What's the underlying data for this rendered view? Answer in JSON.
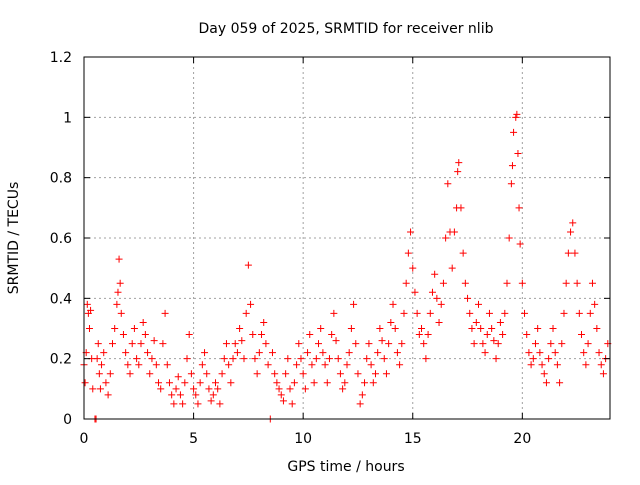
{
  "chart_data": {
    "type": "scatter",
    "title": "Day 059 of 2025, SRMTID for receiver nlib",
    "xlabel": "GPS time / hours",
    "ylabel": "SRMTID / TECUs",
    "xlim": [
      0,
      24
    ],
    "ylim": [
      0,
      1.2
    ],
    "x_ticks": [
      0,
      5,
      10,
      15,
      20
    ],
    "x_tick_labels": [
      "0",
      "5",
      "10",
      "15",
      "20"
    ],
    "y_ticks": [
      0,
      0.2,
      0.4,
      0.6,
      0.8,
      1.0,
      1.2
    ],
    "y_tick_labels": [
      "0",
      "0.2",
      "0.4",
      "0.6",
      "0.8",
      "1",
      "1.2"
    ],
    "grid": true,
    "marker": "plus",
    "colors": {
      "points": "#ff0000",
      "grid": "#a0a0a0",
      "axes": "#000000"
    },
    "series": [
      {
        "name": "SRMTID",
        "points": [
          [
            0.0,
            0.18
          ],
          [
            0.05,
            0.12
          ],
          [
            0.1,
            0.22
          ],
          [
            0.15,
            0.38
          ],
          [
            0.2,
            0.35
          ],
          [
            0.25,
            0.3
          ],
          [
            0.3,
            0.36
          ],
          [
            0.35,
            0.2
          ],
          [
            0.4,
            0.1
          ],
          [
            0.5,
            0.0
          ],
          [
            0.55,
            0.0
          ],
          [
            0.6,
            0.2
          ],
          [
            0.65,
            0.25
          ],
          [
            0.7,
            0.15
          ],
          [
            0.75,
            0.1
          ],
          [
            0.8,
            0.18
          ],
          [
            0.9,
            0.22
          ],
          [
            1.0,
            0.12
          ],
          [
            1.1,
            0.08
          ],
          [
            1.2,
            0.15
          ],
          [
            1.3,
            0.25
          ],
          [
            1.4,
            0.3
          ],
          [
            1.5,
            0.38
          ],
          [
            1.55,
            0.42
          ],
          [
            1.6,
            0.53
          ],
          [
            1.65,
            0.45
          ],
          [
            1.7,
            0.35
          ],
          [
            1.8,
            0.28
          ],
          [
            1.9,
            0.22
          ],
          [
            2.0,
            0.18
          ],
          [
            2.1,
            0.15
          ],
          [
            2.2,
            0.25
          ],
          [
            2.3,
            0.3
          ],
          [
            2.4,
            0.2
          ],
          [
            2.5,
            0.18
          ],
          [
            2.6,
            0.25
          ],
          [
            2.7,
            0.32
          ],
          [
            2.8,
            0.28
          ],
          [
            2.9,
            0.22
          ],
          [
            3.0,
            0.15
          ],
          [
            3.1,
            0.2
          ],
          [
            3.2,
            0.26
          ],
          [
            3.3,
            0.18
          ],
          [
            3.4,
            0.12
          ],
          [
            3.5,
            0.1
          ],
          [
            3.6,
            0.25
          ],
          [
            3.7,
            0.35
          ],
          [
            3.8,
            0.18
          ],
          [
            3.9,
            0.12
          ],
          [
            4.0,
            0.08
          ],
          [
            4.1,
            0.05
          ],
          [
            4.2,
            0.1
          ],
          [
            4.3,
            0.14
          ],
          [
            4.4,
            0.08
          ],
          [
            4.5,
            0.05
          ],
          [
            4.6,
            0.12
          ],
          [
            4.7,
            0.2
          ],
          [
            4.8,
            0.28
          ],
          [
            4.9,
            0.15
          ],
          [
            5.0,
            0.1
          ],
          [
            5.1,
            0.08
          ],
          [
            5.2,
            0.05
          ],
          [
            5.3,
            0.12
          ],
          [
            5.4,
            0.18
          ],
          [
            5.5,
            0.22
          ],
          [
            5.6,
            0.15
          ],
          [
            5.7,
            0.1
          ],
          [
            5.8,
            0.06
          ],
          [
            5.9,
            0.08
          ],
          [
            6.0,
            0.12
          ],
          [
            6.1,
            0.1
          ],
          [
            6.2,
            0.05
          ],
          [
            6.3,
            0.15
          ],
          [
            6.4,
            0.2
          ],
          [
            6.5,
            0.25
          ],
          [
            6.6,
            0.18
          ],
          [
            6.7,
            0.12
          ],
          [
            6.8,
            0.2
          ],
          [
            6.9,
            0.25
          ],
          [
            7.0,
            0.22
          ],
          [
            7.1,
            0.3
          ],
          [
            7.2,
            0.26
          ],
          [
            7.3,
            0.2
          ],
          [
            7.4,
            0.35
          ],
          [
            7.5,
            0.51
          ],
          [
            7.6,
            0.38
          ],
          [
            7.7,
            0.28
          ],
          [
            7.8,
            0.2
          ],
          [
            7.9,
            0.15
          ],
          [
            8.0,
            0.22
          ],
          [
            8.1,
            0.28
          ],
          [
            8.2,
            0.32
          ],
          [
            8.3,
            0.25
          ],
          [
            8.4,
            0.18
          ],
          [
            8.5,
            0.0
          ],
          [
            8.6,
            0.22
          ],
          [
            8.7,
            0.15
          ],
          [
            8.8,
            0.12
          ],
          [
            8.9,
            0.1
          ],
          [
            9.0,
            0.08
          ],
          [
            9.1,
            0.06
          ],
          [
            9.2,
            0.15
          ],
          [
            9.3,
            0.2
          ],
          [
            9.4,
            0.1
          ],
          [
            9.5,
            0.05
          ],
          [
            9.6,
            0.12
          ],
          [
            9.7,
            0.18
          ],
          [
            9.8,
            0.25
          ],
          [
            9.9,
            0.2
          ],
          [
            10.0,
            0.15
          ],
          [
            10.1,
            0.1
          ],
          [
            10.2,
            0.22
          ],
          [
            10.3,
            0.28
          ],
          [
            10.4,
            0.18
          ],
          [
            10.5,
            0.12
          ],
          [
            10.6,
            0.2
          ],
          [
            10.7,
            0.25
          ],
          [
            10.8,
            0.3
          ],
          [
            10.9,
            0.22
          ],
          [
            11.0,
            0.18
          ],
          [
            11.1,
            0.12
          ],
          [
            11.2,
            0.2
          ],
          [
            11.3,
            0.28
          ],
          [
            11.4,
            0.35
          ],
          [
            11.5,
            0.26
          ],
          [
            11.6,
            0.2
          ],
          [
            11.7,
            0.15
          ],
          [
            11.8,
            0.1
          ],
          [
            11.9,
            0.12
          ],
          [
            12.0,
            0.18
          ],
          [
            12.1,
            0.22
          ],
          [
            12.2,
            0.3
          ],
          [
            12.3,
            0.38
          ],
          [
            12.4,
            0.25
          ],
          [
            12.5,
            0.15
          ],
          [
            12.6,
            0.05
          ],
          [
            12.7,
            0.08
          ],
          [
            12.8,
            0.12
          ],
          [
            12.9,
            0.2
          ],
          [
            13.0,
            0.25
          ],
          [
            13.1,
            0.18
          ],
          [
            13.2,
            0.12
          ],
          [
            13.3,
            0.15
          ],
          [
            13.4,
            0.22
          ],
          [
            13.5,
            0.3
          ],
          [
            13.6,
            0.26
          ],
          [
            13.7,
            0.2
          ],
          [
            13.8,
            0.15
          ],
          [
            13.9,
            0.25
          ],
          [
            14.0,
            0.32
          ],
          [
            14.1,
            0.38
          ],
          [
            14.2,
            0.3
          ],
          [
            14.3,
            0.22
          ],
          [
            14.4,
            0.18
          ],
          [
            14.5,
            0.25
          ],
          [
            14.6,
            0.35
          ],
          [
            14.7,
            0.45
          ],
          [
            14.8,
            0.55
          ],
          [
            14.9,
            0.62
          ],
          [
            15.0,
            0.5
          ],
          [
            15.1,
            0.42
          ],
          [
            15.2,
            0.35
          ],
          [
            15.3,
            0.28
          ],
          [
            15.4,
            0.3
          ],
          [
            15.5,
            0.25
          ],
          [
            15.6,
            0.2
          ],
          [
            15.7,
            0.28
          ],
          [
            15.8,
            0.35
          ],
          [
            15.9,
            0.42
          ],
          [
            16.0,
            0.48
          ],
          [
            16.1,
            0.4
          ],
          [
            16.2,
            0.32
          ],
          [
            16.3,
            0.38
          ],
          [
            16.4,
            0.45
          ],
          [
            16.5,
            0.6
          ],
          [
            16.6,
            0.78
          ],
          [
            16.7,
            0.62
          ],
          [
            16.8,
            0.5
          ],
          [
            16.9,
            0.62
          ],
          [
            17.0,
            0.7
          ],
          [
            17.05,
            0.82
          ],
          [
            17.1,
            0.85
          ],
          [
            17.2,
            0.7
          ],
          [
            17.3,
            0.55
          ],
          [
            17.4,
            0.45
          ],
          [
            17.5,
            0.4
          ],
          [
            17.6,
            0.35
          ],
          [
            17.7,
            0.3
          ],
          [
            17.8,
            0.25
          ],
          [
            17.9,
            0.32
          ],
          [
            18.0,
            0.38
          ],
          [
            18.1,
            0.3
          ],
          [
            18.2,
            0.25
          ],
          [
            18.3,
            0.22
          ],
          [
            18.4,
            0.28
          ],
          [
            18.5,
            0.35
          ],
          [
            18.6,
            0.3
          ],
          [
            18.7,
            0.26
          ],
          [
            18.8,
            0.2
          ],
          [
            18.9,
            0.25
          ],
          [
            19.0,
            0.32
          ],
          [
            19.1,
            0.28
          ],
          [
            19.2,
            0.35
          ],
          [
            19.3,
            0.45
          ],
          [
            19.4,
            0.6
          ],
          [
            19.5,
            0.78
          ],
          [
            19.55,
            0.84
          ],
          [
            19.6,
            0.95
          ],
          [
            19.7,
            1.0
          ],
          [
            19.75,
            1.01
          ],
          [
            19.8,
            0.88
          ],
          [
            19.85,
            0.7
          ],
          [
            19.9,
            0.58
          ],
          [
            20.0,
            0.45
          ],
          [
            20.1,
            0.35
          ],
          [
            20.2,
            0.28
          ],
          [
            20.3,
            0.22
          ],
          [
            20.4,
            0.18
          ],
          [
            20.5,
            0.2
          ],
          [
            20.6,
            0.25
          ],
          [
            20.7,
            0.3
          ],
          [
            20.8,
            0.22
          ],
          [
            20.9,
            0.18
          ],
          [
            21.0,
            0.15
          ],
          [
            21.1,
            0.12
          ],
          [
            21.2,
            0.2
          ],
          [
            21.3,
            0.25
          ],
          [
            21.4,
            0.3
          ],
          [
            21.5,
            0.22
          ],
          [
            21.6,
            0.18
          ],
          [
            21.7,
            0.12
          ],
          [
            21.8,
            0.25
          ],
          [
            21.9,
            0.35
          ],
          [
            22.0,
            0.45
          ],
          [
            22.1,
            0.55
          ],
          [
            22.2,
            0.62
          ],
          [
            22.3,
            0.65
          ],
          [
            22.4,
            0.55
          ],
          [
            22.5,
            0.45
          ],
          [
            22.6,
            0.35
          ],
          [
            22.7,
            0.28
          ],
          [
            22.8,
            0.22
          ],
          [
            22.9,
            0.18
          ],
          [
            23.0,
            0.25
          ],
          [
            23.1,
            0.35
          ],
          [
            23.2,
            0.45
          ],
          [
            23.3,
            0.38
          ],
          [
            23.4,
            0.3
          ],
          [
            23.5,
            0.22
          ],
          [
            23.6,
            0.18
          ],
          [
            23.7,
            0.15
          ],
          [
            23.8,
            0.2
          ],
          [
            23.9,
            0.25
          ]
        ]
      }
    ]
  }
}
